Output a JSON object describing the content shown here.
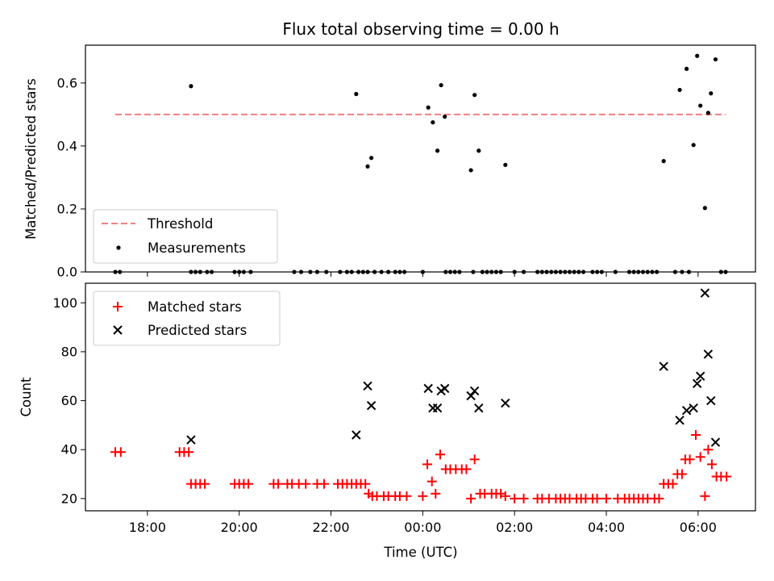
{
  "chart_data": {
    "title": "Flux total observing time = 0.00 h",
    "xlabel": "Time (UTC)",
    "x_unit": "hours since 00:00 UTC",
    "xlim": [
      -7.35,
      7.25
    ],
    "xticks": [
      {
        "value": -6,
        "label": "18:00"
      },
      {
        "value": -4,
        "label": "20:00"
      },
      {
        "value": -2,
        "label": "22:00"
      },
      {
        "value": 0,
        "label": "00:00"
      },
      {
        "value": 2,
        "label": "02:00"
      },
      {
        "value": 4,
        "label": "04:00"
      },
      {
        "value": 6,
        "label": "06:00"
      }
    ],
    "panels": [
      {
        "type": "scatter",
        "ylabel": "Matched/Predicted stars",
        "ylim": [
          0,
          0.72
        ],
        "yticks": [
          0.0,
          0.2,
          0.4,
          0.6
        ],
        "ytick_labels": [
          "0.0",
          "0.2",
          "0.4",
          "0.6"
        ],
        "legend_position": "lower-left",
        "threshold": {
          "name": "Threshold",
          "value": 0.5,
          "x_range": [
            -6.7,
            6.6
          ],
          "color": "#f08080"
        },
        "series": [
          {
            "name": "Measurements",
            "color": "#000000",
            "points": [
              [
                -6.7,
                0
              ],
              [
                -6.6,
                0
              ],
              [
                -5.05,
                0
              ],
              [
                -4.95,
                0
              ],
              [
                -4.85,
                0
              ],
              [
                -4.7,
                0
              ],
              [
                -4.6,
                0
              ],
              [
                -4.1,
                0
              ],
              [
                -4.0,
                0
              ],
              [
                -3.9,
                0
              ],
              [
                -3.75,
                0
              ],
              [
                -2.8,
                0
              ],
              [
                -2.65,
                0
              ],
              [
                -2.45,
                0
              ],
              [
                -2.3,
                0
              ],
              [
                -2.1,
                0
              ],
              [
                -1.8,
                0
              ],
              [
                -1.65,
                0
              ],
              [
                -1.55,
                0
              ],
              [
                -1.4,
                0
              ],
              [
                -1.3,
                0
              ],
              [
                -1.2,
                0
              ],
              [
                -1.05,
                0
              ],
              [
                -0.9,
                0
              ],
              [
                -0.75,
                0
              ],
              [
                -0.6,
                0
              ],
              [
                -0.5,
                0
              ],
              [
                -0.4,
                0
              ],
              [
                0.0,
                0
              ],
              [
                0.5,
                0
              ],
              [
                0.6,
                0
              ],
              [
                0.7,
                0
              ],
              [
                0.8,
                0
              ],
              [
                1.1,
                0
              ],
              [
                1.3,
                0
              ],
              [
                1.4,
                0
              ],
              [
                1.5,
                0
              ],
              [
                1.6,
                0
              ],
              [
                1.7,
                0
              ],
              [
                2.0,
                0
              ],
              [
                2.2,
                0
              ],
              [
                2.5,
                0
              ],
              [
                2.6,
                0
              ],
              [
                2.7,
                0
              ],
              [
                2.8,
                0
              ],
              [
                2.9,
                0
              ],
              [
                3.0,
                0
              ],
              [
                3.1,
                0
              ],
              [
                3.2,
                0
              ],
              [
                3.3,
                0
              ],
              [
                3.4,
                0
              ],
              [
                3.5,
                0
              ],
              [
                3.7,
                0
              ],
              [
                3.8,
                0
              ],
              [
                3.9,
                0
              ],
              [
                4.2,
                0
              ],
              [
                4.5,
                0
              ],
              [
                4.6,
                0
              ],
              [
                4.7,
                0
              ],
              [
                4.8,
                0
              ],
              [
                4.9,
                0
              ],
              [
                5.0,
                0
              ],
              [
                5.1,
                0
              ],
              [
                5.5,
                0
              ],
              [
                5.65,
                0
              ],
              [
                5.8,
                0
              ],
              [
                6.5,
                0
              ],
              [
                6.6,
                0
              ],
              [
                -5.05,
                0.59
              ],
              [
                -1.45,
                0.565
              ],
              [
                -1.2,
                0.335
              ],
              [
                -1.12,
                0.362
              ],
              [
                0.12,
                0.522
              ],
              [
                0.22,
                0.475
              ],
              [
                0.32,
                0.385
              ],
              [
                0.4,
                0.593
              ],
              [
                0.48,
                0.493
              ],
              [
                1.05,
                0.323
              ],
              [
                1.13,
                0.562
              ],
              [
                1.22,
                0.385
              ],
              [
                1.8,
                0.34
              ],
              [
                5.25,
                0.352
              ],
              [
                5.6,
                0.578
              ],
              [
                5.75,
                0.645
              ],
              [
                5.9,
                0.403
              ],
              [
                5.98,
                0.686
              ],
              [
                6.05,
                0.528
              ],
              [
                6.15,
                0.203
              ],
              [
                6.22,
                0.505
              ],
              [
                6.28,
                0.567
              ],
              [
                6.38,
                0.675
              ]
            ]
          }
        ]
      },
      {
        "type": "scatter",
        "ylabel": "Count",
        "ylim": [
          15,
          108
        ],
        "yticks": [
          20,
          40,
          60,
          80,
          100
        ],
        "ytick_labels": [
          "20",
          "40",
          "60",
          "80",
          "100"
        ],
        "legend_position": "upper-left",
        "series": [
          {
            "name": "Matched stars",
            "color": "#ff0000",
            "marker": "plus",
            "points": [
              [
                -6.7,
                39
              ],
              [
                -6.58,
                39
              ],
              [
                -5.3,
                39
              ],
              [
                -5.2,
                39
              ],
              [
                -5.1,
                39
              ],
              [
                -5.05,
                26
              ],
              [
                -4.95,
                26
              ],
              [
                -4.85,
                26
              ],
              [
                -4.75,
                26
              ],
              [
                -4.1,
                26
              ],
              [
                -4.0,
                26
              ],
              [
                -3.9,
                26
              ],
              [
                -3.8,
                26
              ],
              [
                -3.25,
                26
              ],
              [
                -3.15,
                26
              ],
              [
                -2.95,
                26
              ],
              [
                -2.85,
                26
              ],
              [
                -2.7,
                26
              ],
              [
                -2.55,
                26
              ],
              [
                -2.3,
                26
              ],
              [
                -2.15,
                26
              ],
              [
                -1.85,
                26
              ],
              [
                -1.75,
                26
              ],
              [
                -1.65,
                26
              ],
              [
                -1.55,
                26
              ],
              [
                -1.45,
                26
              ],
              [
                -1.35,
                26
              ],
              [
                -1.25,
                26
              ],
              [
                -1.18,
                22
              ],
              [
                -1.1,
                21
              ],
              [
                -1.0,
                21
              ],
              [
                -0.85,
                21
              ],
              [
                -0.75,
                21
              ],
              [
                -0.6,
                21
              ],
              [
                -0.5,
                21
              ],
              [
                -0.35,
                21
              ],
              [
                0.0,
                21
              ],
              [
                0.1,
                34
              ],
              [
                0.2,
                27
              ],
              [
                0.28,
                22
              ],
              [
                0.38,
                38
              ],
              [
                0.5,
                32
              ],
              [
                0.6,
                32
              ],
              [
                0.72,
                32
              ],
              [
                0.85,
                32
              ],
              [
                0.95,
                32
              ],
              [
                1.05,
                20
              ],
              [
                1.13,
                36
              ],
              [
                1.25,
                22
              ],
              [
                1.35,
                22
              ],
              [
                1.5,
                22
              ],
              [
                1.6,
                22
              ],
              [
                1.7,
                22
              ],
              [
                1.8,
                21
              ],
              [
                2.0,
                20
              ],
              [
                2.2,
                20
              ],
              [
                2.5,
                20
              ],
              [
                2.6,
                20
              ],
              [
                2.75,
                20
              ],
              [
                2.9,
                20
              ],
              [
                3.0,
                20
              ],
              [
                3.1,
                20
              ],
              [
                3.2,
                20
              ],
              [
                3.35,
                20
              ],
              [
                3.45,
                20
              ],
              [
                3.55,
                20
              ],
              [
                3.7,
                20
              ],
              [
                3.8,
                20
              ],
              [
                4.0,
                20
              ],
              [
                4.25,
                20
              ],
              [
                4.4,
                20
              ],
              [
                4.5,
                20
              ],
              [
                4.6,
                20
              ],
              [
                4.7,
                20
              ],
              [
                4.8,
                20
              ],
              [
                4.9,
                20
              ],
              [
                5.05,
                20
              ],
              [
                5.15,
                20
              ],
              [
                5.25,
                26
              ],
              [
                5.35,
                26
              ],
              [
                5.45,
                26
              ],
              [
                5.55,
                30
              ],
              [
                5.65,
                30
              ],
              [
                5.72,
                36
              ],
              [
                5.82,
                36
              ],
              [
                5.95,
                46
              ],
              [
                6.05,
                37
              ],
              [
                6.15,
                21
              ],
              [
                6.22,
                40
              ],
              [
                6.3,
                34
              ],
              [
                6.4,
                29
              ],
              [
                6.5,
                29
              ],
              [
                6.62,
                29
              ]
            ]
          },
          {
            "name": "Predicted stars",
            "color": "#000000",
            "marker": "x",
            "points": [
              [
                -5.05,
                44
              ],
              [
                -1.45,
                46
              ],
              [
                -1.2,
                66
              ],
              [
                -1.12,
                58
              ],
              [
                0.12,
                65
              ],
              [
                0.22,
                57
              ],
              [
                0.32,
                57
              ],
              [
                0.4,
                64
              ],
              [
                0.48,
                65
              ],
              [
                1.05,
                62
              ],
              [
                1.13,
                64
              ],
              [
                1.22,
                57
              ],
              [
                1.8,
                59
              ],
              [
                5.25,
                74
              ],
              [
                5.6,
                52
              ],
              [
                5.75,
                56
              ],
              [
                5.9,
                57
              ],
              [
                5.98,
                67
              ],
              [
                6.05,
                70
              ],
              [
                6.15,
                104
              ],
              [
                6.22,
                79
              ],
              [
                6.28,
                60
              ],
              [
                6.38,
                43
              ]
            ]
          }
        ]
      }
    ]
  }
}
